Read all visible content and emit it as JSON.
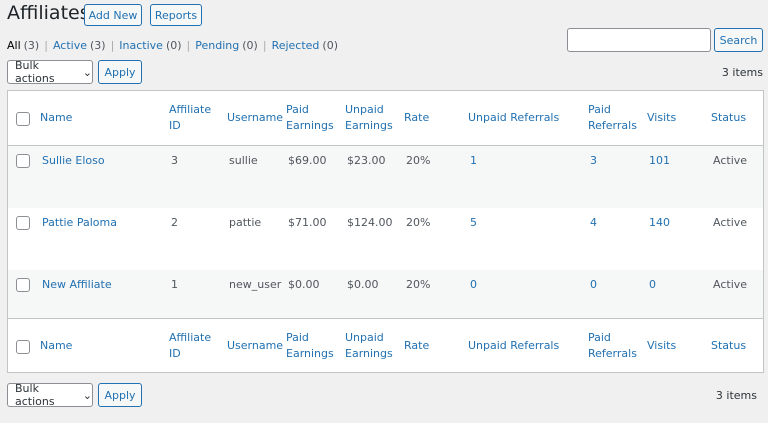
{
  "header": {
    "title": "Affiliates",
    "buttons": [
      "Add New",
      "Reports"
    ]
  },
  "filters": [
    {
      "label": "All",
      "count": "(3)"
    },
    {
      "label": "Active",
      "count": "(3)"
    },
    {
      "label": "Inactive",
      "count": "(0)"
    },
    {
      "label": "Pending",
      "count": "(0)"
    },
    {
      "label": "Rejected",
      "count": "(0)"
    }
  ],
  "search": {
    "button": "Search"
  },
  "bulk": {
    "select": "Bulk actions",
    "apply": "Apply",
    "count": "3 items"
  },
  "table": {
    "columns": [
      "Name",
      "Affiliate ID",
      "Username",
      "Paid Earnings",
      "Unpaid Earnings",
      "Rate",
      "Unpaid Referrals",
      "Paid Referrals",
      "Visits",
      "Status"
    ],
    "rows": [
      [
        "Sullie Eloso",
        "3",
        "sullie",
        "$69.00",
        "$23.00",
        "20%",
        "1",
        "3",
        "101",
        "Active"
      ],
      [
        "Pattie Paloma",
        "2",
        "pattie",
        "$71.00",
        "$124.00",
        "20%",
        "5",
        "4",
        "140",
        "Active"
      ],
      [
        "New Affiliate",
        "1",
        "new_user",
        "$0.00",
        "$0.00",
        "20%",
        "0",
        "0",
        "0",
        "Active"
      ]
    ]
  }
}
